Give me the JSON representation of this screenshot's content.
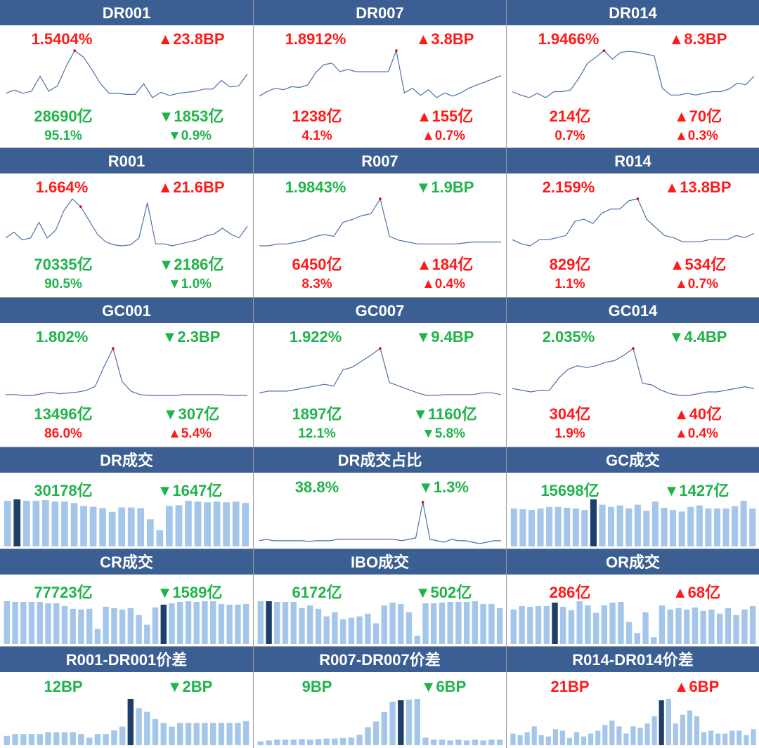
{
  "colors": {
    "header": "#3b5f93",
    "up": "#ff1a1a",
    "down": "#1fb44a",
    "line": "#4f6fa8",
    "bar": "#a4c6ea",
    "bar_highlight": "#1f3f6b"
  },
  "panels": [
    {
      "title": "DR001",
      "type": "line",
      "rate": "1.5404%",
      "rate_color": "red",
      "change": "▲23.8BP",
      "change_color": "red",
      "volume": "28690亿",
      "volume_color": "green",
      "vol_change": "▼1853亿",
      "vol_change_color": "green",
      "share": "95.1%",
      "share_color": "green",
      "share_change": "▼0.9%",
      "share_change_color": "green"
    },
    {
      "title": "DR007",
      "type": "line",
      "rate": "1.8912%",
      "rate_color": "red",
      "change": "▲3.8BP",
      "change_color": "red",
      "volume": "1238亿",
      "volume_color": "red",
      "vol_change": "▲155亿",
      "vol_change_color": "red",
      "share": "4.1%",
      "share_color": "red",
      "share_change": "▲0.7%",
      "share_change_color": "red"
    },
    {
      "title": "DR014",
      "type": "line",
      "rate": "1.9466%",
      "rate_color": "red",
      "change": "▲8.3BP",
      "change_color": "red",
      "volume": "214亿",
      "volume_color": "red",
      "vol_change": "▲70亿",
      "vol_change_color": "red",
      "share": "0.7%",
      "share_color": "red",
      "share_change": "▲0.3%",
      "share_change_color": "red"
    },
    {
      "title": "R001",
      "type": "line",
      "rate": "1.664%",
      "rate_color": "red",
      "change": "▲21.6BP",
      "change_color": "red",
      "volume": "70335亿",
      "volume_color": "green",
      "vol_change": "▼2186亿",
      "vol_change_color": "green",
      "share": "90.5%",
      "share_color": "green",
      "share_change": "▼1.0%",
      "share_change_color": "green"
    },
    {
      "title": "R007",
      "type": "line",
      "rate": "1.9843%",
      "rate_color": "green",
      "change": "▼1.9BP",
      "change_color": "green",
      "volume": "6450亿",
      "volume_color": "red",
      "vol_change": "▲184亿",
      "vol_change_color": "red",
      "share": "8.3%",
      "share_color": "red",
      "share_change": "▲0.4%",
      "share_change_color": "red"
    },
    {
      "title": "R014",
      "type": "line",
      "rate": "2.159%",
      "rate_color": "red",
      "change": "▲13.8BP",
      "change_color": "red",
      "volume": "829亿",
      "volume_color": "red",
      "vol_change": "▲534亿",
      "vol_change_color": "red",
      "share": "1.1%",
      "share_color": "red",
      "share_change": "▲0.7%",
      "share_change_color": "red"
    },
    {
      "title": "GC001",
      "type": "line",
      "rate": "1.802%",
      "rate_color": "green",
      "change": "▼2.3BP",
      "change_color": "green",
      "volume": "13496亿",
      "volume_color": "green",
      "vol_change": "▼307亿",
      "vol_change_color": "green",
      "share": "86.0%",
      "share_color": "red",
      "share_change": "▲5.4%",
      "share_change_color": "red"
    },
    {
      "title": "GC007",
      "type": "line",
      "rate": "1.922%",
      "rate_color": "green",
      "change": "▼9.4BP",
      "change_color": "green",
      "volume": "1897亿",
      "volume_color": "green",
      "vol_change": "▼1160亿",
      "vol_change_color": "green",
      "share": "12.1%",
      "share_color": "green",
      "share_change": "▼5.8%",
      "share_change_color": "green"
    },
    {
      "title": "GC014",
      "type": "line",
      "rate": "2.035%",
      "rate_color": "green",
      "change": "▼4.4BP",
      "change_color": "green",
      "volume": "304亿",
      "volume_color": "red",
      "vol_change": "▲40亿",
      "vol_change_color": "red",
      "share": "1.9%",
      "share_color": "red",
      "share_change": "▲0.4%",
      "share_change_color": "red"
    },
    {
      "title": "DR成交",
      "type": "bar",
      "value": "30178亿",
      "value_color": "green",
      "change": "▼1647亿",
      "change_color": "green"
    },
    {
      "title": "DR成交占比",
      "type": "line",
      "value": "38.8%",
      "value_color": "green",
      "change": "▼1.3%",
      "change_color": "green"
    },
    {
      "title": "GC成交",
      "type": "bar",
      "value": "15698亿",
      "value_color": "green",
      "change": "▼1427亿",
      "change_color": "green"
    },
    {
      "title": "CR成交",
      "type": "bar",
      "value": "77723亿",
      "value_color": "green",
      "change": "▼1589亿",
      "change_color": "green"
    },
    {
      "title": "IBO成交",
      "type": "bar",
      "value": "6172亿",
      "value_color": "green",
      "change": "▼502亿",
      "change_color": "green"
    },
    {
      "title": "OR成交",
      "type": "bar",
      "value": "286亿",
      "value_color": "red",
      "change": "▲68亿",
      "change_color": "red"
    },
    {
      "title": "R001-DR001价差",
      "type": "bar",
      "value": "12BP",
      "value_color": "green",
      "change": "▼2BP",
      "change_color": "green"
    },
    {
      "title": "R007-DR007价差",
      "type": "bar",
      "value": "9BP",
      "value_color": "green",
      "change": "▼6BP",
      "change_color": "green"
    },
    {
      "title": "R014-DR014价差",
      "type": "bar",
      "value": "21BP",
      "value_color": "red",
      "change": "▲6BP",
      "change_color": "red"
    }
  ],
  "chart_data": [
    {
      "type": "line",
      "panel": "DR001",
      "values": [
        8,
        11,
        8,
        10,
        24,
        10,
        15,
        33,
        48,
        42,
        30,
        17,
        8,
        8,
        7,
        7,
        17,
        4,
        9,
        6,
        8,
        9,
        10,
        12,
        12,
        20,
        14,
        15,
        26
      ],
      "highlight_index": 8
    },
    {
      "type": "line",
      "panel": "DR007",
      "values": [
        4,
        10,
        14,
        12,
        16,
        15,
        18,
        34,
        44,
        46,
        35,
        38,
        35,
        35,
        35,
        35,
        35,
        62,
        8,
        14,
        5,
        12,
        2,
        8,
        4,
        8,
        14,
        18,
        22,
        26,
        30
      ],
      "highlight_index": 17
    },
    {
      "type": "line",
      "panel": "DR014",
      "values": [
        12,
        8,
        5,
        10,
        5,
        12,
        12,
        14,
        28,
        45,
        52,
        60,
        50,
        58,
        59,
        58,
        56,
        54,
        16,
        8,
        8,
        10,
        8,
        10,
        12,
        12,
        15,
        22,
        20,
        30
      ],
      "highlight_index": 11
    },
    {
      "type": "line",
      "panel": "R001",
      "values": [
        12,
        18,
        10,
        12,
        28,
        12,
        20,
        40,
        52,
        44,
        30,
        16,
        8,
        5,
        4,
        5,
        12,
        48,
        6,
        6,
        4,
        6,
        8,
        10,
        14,
        16,
        22,
        16,
        12,
        24
      ],
      "highlight_index": 9
    },
    {
      "type": "line",
      "panel": "R007",
      "values": [
        8,
        8,
        10,
        10,
        12,
        14,
        18,
        20,
        18,
        33,
        36,
        40,
        42,
        58,
        18,
        14,
        12,
        10,
        10,
        10,
        10,
        10,
        11,
        12,
        12,
        12,
        12
      ],
      "highlight_index": 13
    },
    {
      "type": "line",
      "panel": "R014",
      "values": [
        14,
        10,
        8,
        14,
        14,
        16,
        18,
        32,
        34,
        30,
        40,
        44,
        44,
        52,
        54,
        34,
        26,
        18,
        16,
        12,
        12,
        12,
        14,
        14,
        14,
        18,
        16,
        20
      ],
      "highlight_index": 14
    },
    {
      "type": "line",
      "panel": "GC001",
      "values": [
        6,
        6,
        5,
        5,
        7,
        9,
        7,
        8,
        9,
        11,
        16,
        40,
        62,
        22,
        10,
        6,
        5,
        5,
        5,
        5,
        6,
        6,
        6,
        6,
        6,
        5,
        5,
        5
      ],
      "highlight_index": 12
    },
    {
      "type": "line",
      "panel": "GC007",
      "values": [
        8,
        10,
        10,
        10,
        12,
        14,
        16,
        18,
        16,
        35,
        38,
        45,
        52,
        60,
        20,
        16,
        12,
        8,
        5,
        5,
        6,
        6,
        6,
        6,
        8,
        8,
        6
      ],
      "highlight_index": 13
    },
    {
      "type": "line",
      "panel": "GC014",
      "values": [
        14,
        12,
        10,
        12,
        12,
        26,
        36,
        40,
        38,
        40,
        44,
        46,
        52,
        60,
        20,
        18,
        12,
        8,
        6,
        6,
        8,
        10,
        10,
        12,
        14,
        16,
        14
      ],
      "highlight_index": 13
    },
    {
      "type": "bar",
      "panel": "DR成交",
      "values": [
        62,
        64,
        62,
        62,
        63,
        61,
        61,
        59,
        55,
        54,
        52,
        47,
        53,
        53,
        52,
        37,
        22,
        55,
        56,
        62,
        61,
        60,
        61,
        60,
        61,
        59
      ],
      "highlight_index": 1
    },
    {
      "type": "line",
      "panel": "DR成交占比",
      "values": [
        6,
        8,
        6,
        6,
        6,
        6,
        6,
        5,
        6,
        6,
        6,
        8,
        8,
        8,
        8,
        8,
        8,
        8,
        8,
        8,
        6,
        8,
        10,
        60,
        8,
        6,
        4,
        8,
        6,
        6,
        4,
        2,
        4,
        6,
        6
      ],
      "highlight_index": 23
    },
    {
      "type": "bar",
      "panel": "GC成交",
      "values": [
        50,
        49,
        48,
        50,
        52,
        52,
        51,
        50,
        48,
        62,
        55,
        52,
        54,
        50,
        55,
        47,
        59,
        51,
        48,
        46,
        52,
        54,
        50,
        50,
        50,
        53,
        60,
        50
      ],
      "highlight_index": 9
    },
    {
      "type": "bar",
      "panel": "CR成交",
      "values": [
        62,
        61,
        61,
        61,
        61,
        59,
        59,
        55,
        51,
        50,
        51,
        22,
        54,
        52,
        50,
        52,
        42,
        28,
        53,
        57,
        59,
        61,
        62,
        61,
        62,
        62,
        58,
        57,
        57,
        58
      ],
      "highlight_index": 19
    },
    {
      "type": "bar",
      "panel": "IBO成交",
      "values": [
        62,
        62,
        61,
        61,
        61,
        52,
        56,
        51,
        40,
        46,
        36,
        38,
        40,
        44,
        30,
        56,
        60,
        58,
        46,
        12,
        59,
        59,
        60,
        61,
        61,
        61,
        62,
        58,
        58,
        52
      ],
      "highlight_index": 1
    },
    {
      "type": "bar",
      "panel": "OR成交",
      "values": [
        50,
        55,
        54,
        55,
        55,
        60,
        54,
        49,
        62,
        56,
        45,
        56,
        60,
        61,
        32,
        16,
        46,
        10,
        56,
        50,
        52,
        50,
        53,
        48,
        50,
        44,
        52,
        42,
        50,
        55
      ],
      "highlight_index": 5
    },
    {
      "type": "bar",
      "panel": "R001-DR001价差",
      "values": [
        5,
        6,
        6,
        6,
        6,
        7,
        7,
        7,
        7,
        6,
        4,
        6,
        6,
        8,
        10,
        25,
        20,
        18,
        14,
        12,
        10,
        12,
        12,
        12,
        12,
        12,
        12,
        12,
        12,
        13
      ],
      "highlight_index": 15
    },
    {
      "type": "bar",
      "panel": "R007-DR007价差",
      "values": [
        8,
        10,
        12,
        12,
        12,
        13,
        12,
        13,
        14,
        14,
        15,
        16,
        22,
        38,
        50,
        70,
        92,
        95,
        96,
        98,
        16,
        12,
        12,
        10,
        12,
        10,
        12,
        10,
        12,
        12
      ],
      "highlight_index": 17
    },
    {
      "type": "bar",
      "panel": "R014-DR014价差",
      "values": [
        16,
        14,
        18,
        26,
        14,
        12,
        22,
        20,
        10,
        18,
        12,
        16,
        20,
        28,
        34,
        26,
        16,
        26,
        24,
        30,
        40,
        62,
        64,
        30,
        42,
        48,
        40,
        18,
        20,
        16,
        16,
        20,
        20,
        14,
        22
      ],
      "highlight_index": 21
    }
  ]
}
